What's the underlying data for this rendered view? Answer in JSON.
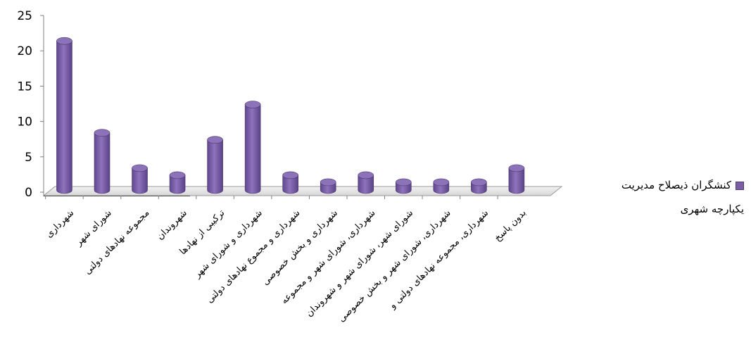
{
  "chart_data": {
    "type": "bar",
    "categories": [
      "شهرداری",
      "شورای شهر",
      "مجموعه نهادهای دولتی",
      "شهروندان",
      "ترکیبی از نهادها",
      "شهرداری و شورای شهر",
      "شهرداری و مجموع نهادهای دولتی",
      "شهرداری و بخش خصوصی",
      "شهرداری، شورای شهر و مجموعه",
      "شورای شهر، شورای شهر و شهروندان",
      "شهرداری، شورای شهر و بخش خصوصی",
      "شهرداری، مجموعه نهادهای دولتی و",
      "بدون پاسخ"
    ],
    "series": [
      {
        "name": "کنشگران ذیصلاح مدیریت یکپارچه شهری",
        "values": [
          21,
          8,
          3,
          2,
          7,
          12,
          2,
          1,
          2,
          1,
          1,
          1,
          3
        ]
      }
    ],
    "ylim": [
      0,
      25
    ],
    "yticks": [
      "0",
      "5",
      "10",
      "15",
      "20",
      "25"
    ],
    "legend_position": "right",
    "bar_color": "#7b5ea6",
    "grid": false
  }
}
